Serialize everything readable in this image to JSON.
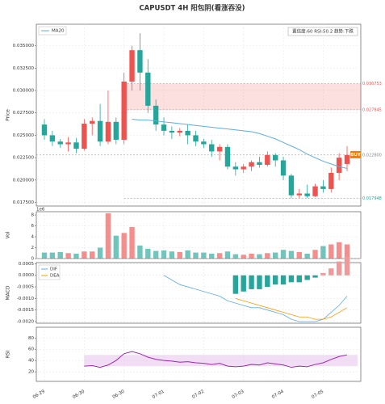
{
  "chart_data": [
    {
      "type": "candlestick",
      "title": "CAPUSDT  4H  阳包阴(看涨吞没)",
      "ylabel": "Price",
      "open": [
        0.0262,
        0.025,
        0.0243,
        0.024,
        0.0242,
        0.0235,
        0.0263,
        0.0266,
        0.0243,
        0.0265,
        0.0245,
        0.031,
        0.0345,
        0.032,
        0.0283,
        0.0262,
        0.0255,
        0.0253,
        0.0255,
        0.025,
        0.0243,
        0.024,
        0.0232,
        0.0237,
        0.0215,
        0.0212,
        0.0215,
        0.022,
        0.0217,
        0.0228,
        0.0222,
        0.0205,
        0.0183,
        0.0185,
        0.0182,
        0.0193,
        0.019,
        0.0208,
        0.0218
      ],
      "high": [
        0.0268,
        0.0255,
        0.0246,
        0.0248,
        0.0247,
        0.0268,
        0.027,
        0.0285,
        0.03,
        0.027,
        0.032,
        0.035,
        0.0364,
        0.0335,
        0.029,
        0.027,
        0.026,
        0.0258,
        0.0262,
        0.0255,
        0.0246,
        0.0245,
        0.024,
        0.024,
        0.022,
        0.0218,
        0.0222,
        0.0226,
        0.0232,
        0.023,
        0.0226,
        0.0207,
        0.019,
        0.0195,
        0.0196,
        0.02,
        0.0214,
        0.023,
        0.0238
      ],
      "low": [
        0.0245,
        0.0238,
        0.0236,
        0.0232,
        0.023,
        0.0233,
        0.025,
        0.0238,
        0.024,
        0.024,
        0.024,
        0.03,
        0.03,
        0.0275,
        0.0255,
        0.025,
        0.0246,
        0.0249,
        0.024,
        0.0238,
        0.0236,
        0.0226,
        0.0222,
        0.0212,
        0.0205,
        0.0208,
        0.021,
        0.0214,
        0.0215,
        0.0215,
        0.02,
        0.018,
        0.018,
        0.018,
        0.0181,
        0.0186,
        0.0186,
        0.02,
        0.021
      ],
      "close": [
        0.025,
        0.0243,
        0.024,
        0.0242,
        0.0235,
        0.0263,
        0.0266,
        0.0243,
        0.0265,
        0.0245,
        0.031,
        0.0345,
        0.032,
        0.0283,
        0.0262,
        0.0255,
        0.0253,
        0.0255,
        0.025,
        0.0243,
        0.024,
        0.0232,
        0.0237,
        0.0215,
        0.0212,
        0.0215,
        0.022,
        0.0217,
        0.0228,
        0.0222,
        0.0205,
        0.0183,
        0.0185,
        0.0182,
        0.0193,
        0.019,
        0.0208,
        0.0225,
        0.0228
      ],
      "up_color": "#ef5350",
      "down_color": "#26a69a",
      "ylim": [
        0.0171,
        0.0374
      ],
      "yticks": [
        {
          "value": 0.0175,
          "label": "0.017500"
        },
        {
          "value": 0.02,
          "label": "0.020000"
        },
        {
          "value": 0.0225,
          "label": "0.022500"
        },
        {
          "value": 0.025,
          "label": "0.025000"
        },
        {
          "value": 0.0275,
          "label": "0.027500"
        },
        {
          "value": 0.03,
          "label": "0.030000"
        },
        {
          "value": 0.0325,
          "label": "0.032500"
        },
        {
          "value": 0.035,
          "label": "0.035000"
        }
      ],
      "series": [
        {
          "name": "MA20",
          "color": "#5dade2",
          "values": [
            null,
            null,
            null,
            null,
            null,
            null,
            null,
            null,
            null,
            null,
            null,
            0.0268,
            0.0267,
            0.0267,
            0.0266,
            0.0265,
            0.0264,
            0.0263,
            0.0262,
            0.0261,
            0.026,
            0.0259,
            0.0258,
            0.0257,
            0.0256,
            0.0255,
            0.0254,
            0.0252,
            0.0249,
            0.0246,
            0.0242,
            0.0238,
            0.0234,
            0.0229,
            0.0225,
            0.0221,
            0.0218,
            0.0215,
            0.0213
          ]
        }
      ],
      "levels": [
        0.030753,
        0.027845,
        {
          "value": 0.0228,
          "label": "0.022800"
        },
        0.017948
      ],
      "level_colors": [
        "#ef5350",
        "#ef5350",
        "#888888",
        "#26a69a"
      ],
      "info": "置信度:60  RSI:50.2  趋势:下跌",
      "signal": "BUY",
      "signal_color": "#f57c00"
    },
    {
      "type": "bar",
      "ylabel": "Vol",
      "scale_label": "1e6",
      "values": [
        1.1,
        1.1,
        1.2,
        1.0,
        0.9,
        1.3,
        1.3,
        2.0,
        8.3,
        4.2,
        4.7,
        5.8,
        2.4,
        1.8,
        1.4,
        1.5,
        1.3,
        1.2,
        1.5,
        1.1,
        1.1,
        0.9,
        1.0,
        1.3,
        0.8,
        0.7,
        0.9,
        0.8,
        1.0,
        1.1,
        1.6,
        1.4,
        1.2,
        0.9,
        1.6,
        2.3,
        2.6,
        3.0,
        2.6
      ],
      "ylim": [
        0,
        8.6
      ],
      "yticks": [
        0,
        2,
        4,
        6,
        8
      ]
    },
    {
      "type": "macd",
      "ylabel": "MACD",
      "series": [
        {
          "name": "DIF",
          "color": "#5dade2",
          "values": [
            null,
            null,
            null,
            null,
            null,
            null,
            null,
            null,
            null,
            null,
            null,
            null,
            null,
            null,
            null,
            0,
            -0.0002,
            -0.0004,
            -0.0005,
            -0.0006,
            -0.0007,
            -0.0008,
            -0.0009,
            -0.0011,
            -0.0012,
            -0.0013,
            -0.0014,
            -0.0014,
            -0.0015,
            -0.0016,
            -0.0017,
            -0.0019,
            -0.002,
            -0.002,
            -0.002,
            -0.0019,
            -0.0016,
            -0.0013,
            -0.0009
          ]
        },
        {
          "name": "DEA",
          "color": "#ff9800",
          "values": [
            null,
            null,
            null,
            null,
            null,
            null,
            null,
            null,
            null,
            null,
            null,
            null,
            null,
            null,
            null,
            null,
            null,
            null,
            null,
            null,
            null,
            null,
            null,
            null,
            -0.001,
            -0.0011,
            -0.0012,
            -0.0013,
            -0.0014,
            -0.0015,
            -0.0016,
            -0.0017,
            -0.0018,
            -0.0018,
            -0.0019,
            -0.0019,
            -0.0018,
            -0.0016,
            -0.0014
          ]
        }
      ],
      "histogram": [
        null,
        null,
        null,
        null,
        null,
        null,
        null,
        null,
        null,
        null,
        null,
        null,
        null,
        null,
        null,
        null,
        null,
        null,
        null,
        null,
        null,
        null,
        null,
        null,
        -0.0008,
        -0.0007,
        -0.0006,
        -0.0006,
        -0.0005,
        -0.0004,
        -0.0004,
        -0.0003,
        -0.0003,
        -0.0002,
        -0.0001,
        0.0001,
        0.0003,
        0.0006,
        0.0008
      ],
      "up_color": "#ef9a9a",
      "down_color": "#26a69a",
      "ylim": [
        -0.00207,
        0.00055
      ],
      "yticks": [
        0.0005,
        {
          "value": 0,
          "label": "0.0000"
        },
        {
          "value": -0.0005,
          "label": "-0.0005"
        },
        {
          "value": -0.001,
          "label": "-0.0010"
        },
        {
          "value": -0.0015,
          "label": "-0.0015"
        },
        {
          "value": -0.002,
          "label": "-0.0020"
        }
      ]
    },
    {
      "type": "line",
      "ylabel": "RSI",
      "color": "#9c27b0",
      "values": [
        null,
        null,
        null,
        null,
        null,
        30,
        31,
        28,
        32,
        40,
        52,
        56,
        52,
        46,
        42,
        40,
        39,
        37,
        38,
        36,
        35,
        33,
        35,
        30,
        29,
        30,
        33,
        32,
        36,
        34,
        32,
        28,
        30,
        29,
        33,
        36,
        42,
        47,
        50
      ],
      "band": [
        30,
        50
      ],
      "band_color": "#e8c6ec",
      "ylim": [
        3,
        99
      ],
      "yticks": [
        20,
        40,
        60,
        80
      ],
      "categories": [
        "06-29",
        null,
        null,
        null,
        null,
        "06-30",
        null,
        null,
        null,
        null,
        "06-30",
        null,
        null,
        null,
        null,
        "07-01",
        null,
        null,
        null,
        null,
        "07-02",
        null,
        null,
        null,
        null,
        "07-03",
        null,
        null,
        null,
        null,
        "07-04",
        null,
        null,
        null,
        null,
        "07-05",
        null,
        null,
        null
      ]
    }
  ]
}
